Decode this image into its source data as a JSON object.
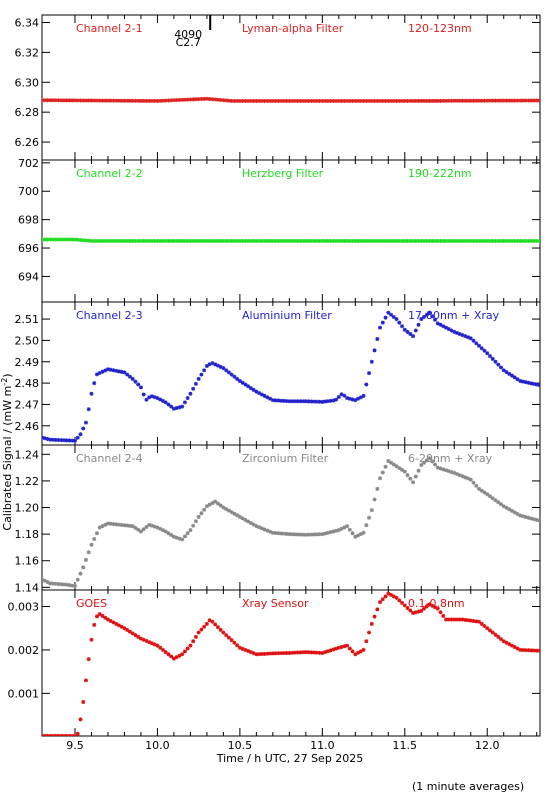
{
  "chart_data": {
    "type": "scatter",
    "x_axis": {
      "label": "Time / h UTC, 27 Sep 2025",
      "range": [
        9.3,
        12.32
      ],
      "ticks": [
        9.5,
        10.0,
        10.5,
        11.0,
        11.5,
        12.0
      ],
      "tick_labels": [
        "9.5",
        "10.0",
        "10.5",
        "11.0",
        "11.5",
        "12.0"
      ]
    },
    "y_label_main": "Calibrated Signal / (mW m",
    "y_label_sup": "-2",
    "y_label_close": ")",
    "footnote": "(1 minute averages)",
    "marker": {
      "label": "4090",
      "sublabel": "C2.7",
      "x": 10.32
    },
    "panels": [
      {
        "channel": "Channel 2-1",
        "filter": "Lyman-alpha Filter",
        "band": "120-123nm",
        "color": "#dd2222",
        "ylim": [
          6.248,
          6.345
        ],
        "yticks": [
          6.26,
          6.28,
          6.3,
          6.32,
          6.34
        ],
        "ytick_labels": [
          "6.26",
          "6.28",
          "6.30",
          "6.32",
          "6.34"
        ],
        "points": [
          [
            9.3,
            6.288
          ],
          [
            10.0,
            6.2875
          ],
          [
            10.2,
            6.2885
          ],
          [
            10.3,
            6.289
          ],
          [
            10.45,
            6.2875
          ],
          [
            11.0,
            6.2875
          ],
          [
            11.5,
            6.2875
          ],
          [
            12.32,
            6.2878
          ]
        ]
      },
      {
        "channel": "Channel 2-2",
        "filter": "Herzberg Filter",
        "band": "190-222nm",
        "color": "#22dd22",
        "ylim": [
          692.2,
          702.2
        ],
        "yticks": [
          694,
          696,
          698,
          700,
          702
        ],
        "ytick_labels": [
          "694",
          "696",
          "698",
          "700",
          "702"
        ],
        "points": [
          [
            9.3,
            696.6
          ],
          [
            9.5,
            696.6
          ],
          [
            9.6,
            696.5
          ],
          [
            10.0,
            696.5
          ],
          [
            11.0,
            696.5
          ],
          [
            12.32,
            696.5
          ]
        ]
      },
      {
        "channel": "Channel 2-3",
        "filter": "Aluminium Filter",
        "band": "17-80nm + Xray",
        "color": "#2222cc",
        "ylim": [
          2.451,
          2.518
        ],
        "yticks": [
          2.46,
          2.47,
          2.48,
          2.49,
          2.5,
          2.51
        ],
        "ytick_labels": [
          "2.46",
          "2.47",
          "2.48",
          "2.49",
          "2.50",
          "2.51"
        ],
        "points": [
          [
            9.3,
            2.4545
          ],
          [
            9.35,
            2.4535
          ],
          [
            9.5,
            2.453
          ],
          [
            9.53,
            2.4555
          ],
          [
            9.57,
            2.462
          ],
          [
            9.6,
            2.475
          ],
          [
            9.63,
            2.484
          ],
          [
            9.7,
            2.4865
          ],
          [
            9.8,
            2.485
          ],
          [
            9.85,
            2.482
          ],
          [
            9.9,
            2.478
          ],
          [
            9.93,
            2.472
          ],
          [
            9.96,
            2.474
          ],
          [
            10.0,
            2.473
          ],
          [
            10.05,
            2.471
          ],
          [
            10.1,
            2.468
          ],
          [
            10.15,
            2.469
          ],
          [
            10.2,
            2.475
          ],
          [
            10.25,
            2.482
          ],
          [
            10.3,
            2.488
          ],
          [
            10.33,
            2.4895
          ],
          [
            10.4,
            2.487
          ],
          [
            10.5,
            2.481
          ],
          [
            10.6,
            2.476
          ],
          [
            10.7,
            2.472
          ],
          [
            10.8,
            2.4715
          ],
          [
            10.9,
            2.4715
          ],
          [
            11.0,
            2.4712
          ],
          [
            11.08,
            2.472
          ],
          [
            11.12,
            2.475
          ],
          [
            11.15,
            2.473
          ],
          [
            11.2,
            2.472
          ],
          [
            11.25,
            2.474
          ],
          [
            11.3,
            2.49
          ],
          [
            11.35,
            2.506
          ],
          [
            11.4,
            2.513
          ],
          [
            11.45,
            2.51
          ],
          [
            11.5,
            2.505
          ],
          [
            11.55,
            2.502
          ],
          [
            11.6,
            2.51
          ],
          [
            11.65,
            2.513
          ],
          [
            11.7,
            2.508
          ],
          [
            11.8,
            2.504
          ],
          [
            11.9,
            2.501
          ],
          [
            12.0,
            2.494
          ],
          [
            12.1,
            2.486
          ],
          [
            12.2,
            2.481
          ],
          [
            12.32,
            2.479
          ]
        ]
      },
      {
        "channel": "Channel 2-4",
        "filter": "Zirconium Filter",
        "band": "6-20nm + Xray",
        "color": "#888888",
        "ylim": [
          1.138,
          1.247
        ],
        "yticks": [
          1.14,
          1.16,
          1.18,
          1.2,
          1.22,
          1.24
        ],
        "ytick_labels": [
          "1.14",
          "1.16",
          "1.18",
          "1.20",
          "1.22",
          "1.24"
        ],
        "points": [
          [
            9.3,
            1.146
          ],
          [
            9.35,
            1.143
          ],
          [
            9.45,
            1.142
          ],
          [
            9.5,
            1.141
          ],
          [
            9.55,
            1.155
          ],
          [
            9.6,
            1.172
          ],
          [
            9.65,
            1.185
          ],
          [
            9.7,
            1.188
          ],
          [
            9.85,
            1.186
          ],
          [
            9.9,
            1.182
          ],
          [
            9.95,
            1.187
          ],
          [
            10.0,
            1.185
          ],
          [
            10.05,
            1.182
          ],
          [
            10.1,
            1.178
          ],
          [
            10.15,
            1.176
          ],
          [
            10.2,
            1.183
          ],
          [
            10.25,
            1.193
          ],
          [
            10.3,
            1.201
          ],
          [
            10.35,
            1.2045
          ],
          [
            10.4,
            1.2
          ],
          [
            10.5,
            1.193
          ],
          [
            10.6,
            1.186
          ],
          [
            10.7,
            1.181
          ],
          [
            10.8,
            1.18
          ],
          [
            10.9,
            1.1795
          ],
          [
            11.0,
            1.18
          ],
          [
            11.1,
            1.183
          ],
          [
            11.15,
            1.186
          ],
          [
            11.2,
            1.178
          ],
          [
            11.25,
            1.181
          ],
          [
            11.3,
            1.198
          ],
          [
            11.35,
            1.222
          ],
          [
            11.4,
            1.235
          ],
          [
            11.45,
            1.231
          ],
          [
            11.5,
            1.227
          ],
          [
            11.55,
            1.219
          ],
          [
            11.6,
            1.232
          ],
          [
            11.65,
            1.237
          ],
          [
            11.7,
            1.23
          ],
          [
            11.8,
            1.226
          ],
          [
            11.9,
            1.221
          ],
          [
            11.95,
            1.214
          ],
          [
            12.0,
            1.21
          ],
          [
            12.1,
            1.201
          ],
          [
            12.2,
            1.194
          ],
          [
            12.32,
            1.19
          ]
        ]
      },
      {
        "channel": "GOES",
        "filter": "Xray Sensor",
        "band": "0.1-0.8nm",
        "color": "#dd1111",
        "ylim": [
          1.8e-05,
          0.00338
        ],
        "yticks": [
          0.001,
          0.002,
          0.003
        ],
        "ytick_labels": [
          "0.001",
          "0.002",
          "0.003"
        ],
        "points": [
          [
            9.3,
            2e-05
          ],
          [
            9.5,
            2e-05
          ],
          [
            9.52,
            8e-05
          ],
          [
            9.55,
            0.0008
          ],
          [
            9.58,
            0.0017
          ],
          [
            9.61,
            0.0025
          ],
          [
            9.64,
            0.00285
          ],
          [
            9.7,
            0.0027
          ],
          [
            9.8,
            0.0025
          ],
          [
            9.9,
            0.00226
          ],
          [
            10.0,
            0.0021
          ],
          [
            10.1,
            0.0018
          ],
          [
            10.15,
            0.0019
          ],
          [
            10.2,
            0.0021
          ],
          [
            10.25,
            0.0024
          ],
          [
            10.3,
            0.0026
          ],
          [
            10.32,
            0.0027
          ],
          [
            10.4,
            0.0024
          ],
          [
            10.5,
            0.00205
          ],
          [
            10.6,
            0.0019
          ],
          [
            10.7,
            0.00192
          ],
          [
            10.8,
            0.00193
          ],
          [
            10.9,
            0.00195
          ],
          [
            11.0,
            0.00193
          ],
          [
            11.1,
            0.00205
          ],
          [
            11.15,
            0.0021
          ],
          [
            11.2,
            0.0019
          ],
          [
            11.25,
            0.002
          ],
          [
            11.3,
            0.0026
          ],
          [
            11.35,
            0.0031
          ],
          [
            11.4,
            0.0033
          ],
          [
            11.45,
            0.0032
          ],
          [
            11.55,
            0.00285
          ],
          [
            11.6,
            0.0029
          ],
          [
            11.65,
            0.00305
          ],
          [
            11.7,
            0.00295
          ],
          [
            11.75,
            0.0027
          ],
          [
            11.85,
            0.0027
          ],
          [
            11.95,
            0.00265
          ],
          [
            12.0,
            0.0025
          ],
          [
            12.1,
            0.0022
          ],
          [
            12.2,
            0.002
          ],
          [
            12.32,
            0.00198
          ]
        ]
      }
    ]
  }
}
